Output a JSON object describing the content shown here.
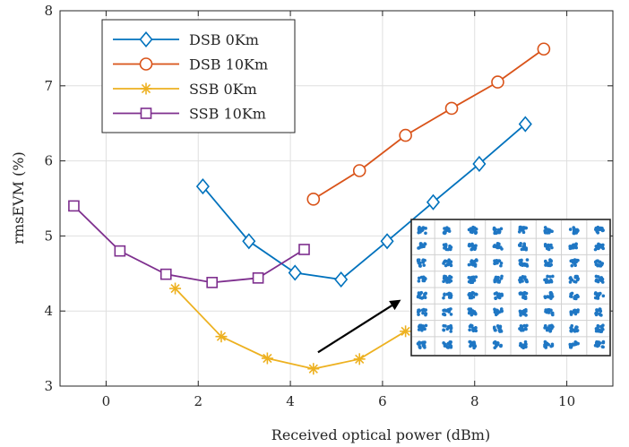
{
  "chart_data": {
    "type": "line",
    "xlabel": "Received optical power (dBm)",
    "ylabel": "rmsEVM (%)",
    "xlim": [
      -1,
      11
    ],
    "ylim": [
      3,
      8
    ],
    "xticks": [
      0,
      2,
      4,
      6,
      8,
      10
    ],
    "yticks": [
      3,
      4,
      5,
      6,
      7,
      8
    ],
    "grid": true,
    "legend_position": "top-left",
    "series": [
      {
        "name": "DSB 0Km",
        "color": "#0072BD",
        "marker": "diamond",
        "x": [
          2.1,
          3.1,
          4.1,
          5.1,
          6.1,
          7.1,
          8.1,
          9.1
        ],
        "y": [
          5.66,
          4.93,
          4.51,
          4.42,
          4.93,
          5.45,
          5.96,
          6.49
        ]
      },
      {
        "name": "DSB 10Km",
        "color": "#D95319",
        "marker": "circle",
        "x": [
          4.5,
          5.5,
          6.5,
          7.5,
          8.5,
          9.5
        ],
        "y": [
          5.49,
          5.87,
          6.34,
          6.7,
          7.05,
          7.49
        ]
      },
      {
        "name": "SSB 0Km",
        "color": "#EDB120",
        "marker": "asterisk",
        "x": [
          1.5,
          2.5,
          3.5,
          4.5,
          5.5,
          6.5
        ],
        "y": [
          4.3,
          3.66,
          3.37,
          3.23,
          3.36,
          3.73
        ]
      },
      {
        "name": "SSB 10Km",
        "color": "#7E2F8E",
        "marker": "square",
        "x": [
          -0.7,
          0.3,
          1.3,
          2.3,
          3.3,
          4.3
        ],
        "y": [
          5.4,
          4.8,
          4.49,
          4.38,
          4.44,
          4.82
        ]
      }
    ],
    "inset": {
      "description": "constellation",
      "grid_points": 8,
      "arrow_from": [
        4.6,
        3.45
      ],
      "arrow_to": [
        6.4,
        4.15
      ]
    }
  }
}
